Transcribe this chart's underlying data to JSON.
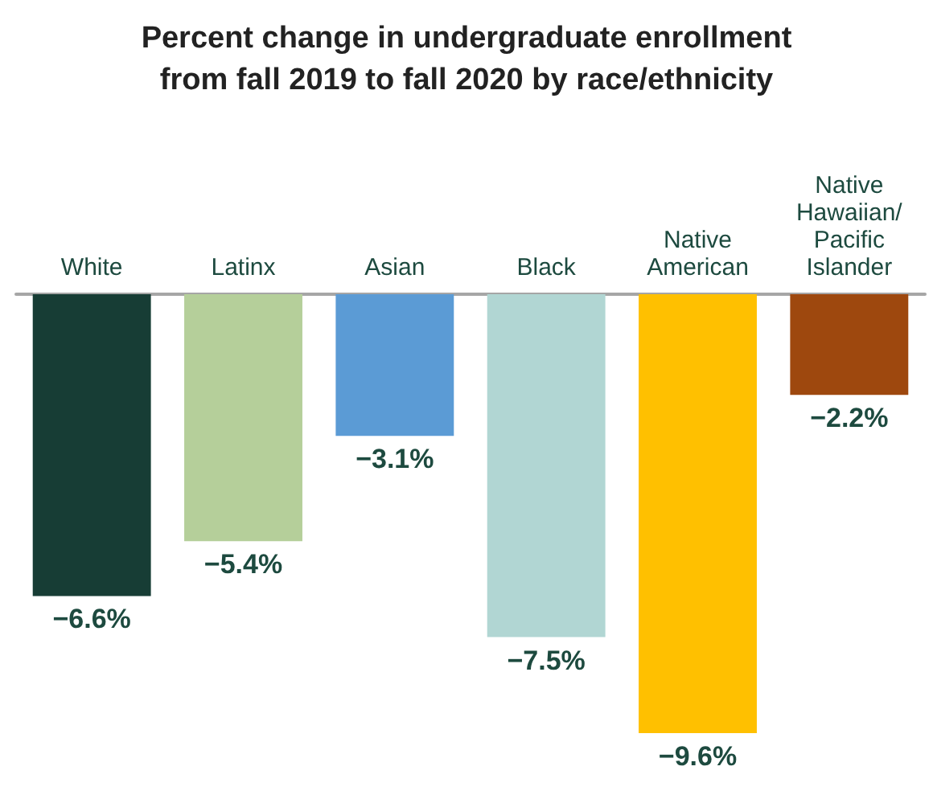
{
  "chart_data": {
    "type": "bar",
    "title": "Percent change in undergraduate enrollment\nfrom fall 2019 to fall 2020 by race/ethnicity",
    "categories": [
      "White",
      "Latinx",
      "Asian",
      "Black",
      "Native\nAmerican",
      "Native\nHawaiian/\nPacific\nIslander"
    ],
    "values": [
      -6.6,
      -5.4,
      -3.1,
      -7.5,
      -9.6,
      -2.2
    ],
    "colors": [
      "#173d35",
      "#b5cf9a",
      "#5b9bd5",
      "#b1d6d3",
      "#ffc000",
      "#9e480e"
    ],
    "value_labels": [
      "−6.6%",
      "−5.4%",
      "−3.1%",
      "−7.5%",
      "−9.6%",
      "−2.2%"
    ]
  }
}
